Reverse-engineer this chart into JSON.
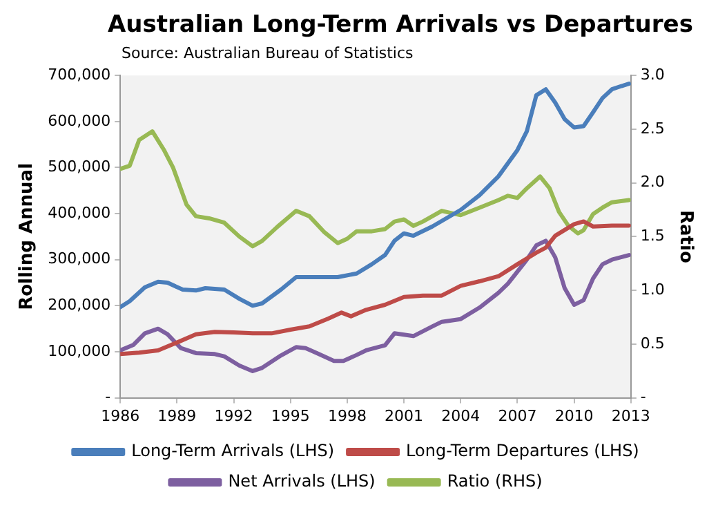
{
  "chart_data": {
    "type": "line",
    "title": "Australian Long-Term Arrivals vs Departures",
    "annotations": [
      "Source: Australian Bureau of Statistics"
    ],
    "ylabel": "Rolling Annual",
    "y2label": "Ratio",
    "xlim": [
      1986,
      2013
    ],
    "xticks": [
      1986,
      1989,
      1992,
      1995,
      1998,
      2001,
      2004,
      2007,
      2010,
      2013
    ],
    "ylim": [
      0,
      700000
    ],
    "yticks": [
      {
        "value": 0,
        "label": "-"
      },
      {
        "value": 100000,
        "label": "100,000"
      },
      {
        "value": 200000,
        "label": "200,000"
      },
      {
        "value": 300000,
        "label": "300,000"
      },
      {
        "value": 400000,
        "label": "400,000"
      },
      {
        "value": 500000,
        "label": "500,000"
      },
      {
        "value": 600000,
        "label": "600,000"
      },
      {
        "value": 700000,
        "label": "700,000"
      }
    ],
    "y2lim": [
      0,
      3
    ],
    "y2ticks": [
      {
        "value": 0,
        "label": "-"
      },
      {
        "value": 0.5,
        "label": "0.5"
      },
      {
        "value": 1,
        "label": "1.0"
      },
      {
        "value": 1.5,
        "label": "1.5"
      },
      {
        "value": 2,
        "label": "2.0"
      },
      {
        "value": 2.5,
        "label": "2.5"
      },
      {
        "value": 3,
        "label": "3.0"
      }
    ],
    "grid": false,
    "legend": "bottom",
    "marker": "none",
    "line_style": "solid",
    "series": [
      {
        "name": "Long-Term Arrivals (LHS)",
        "color": "#4a7ebb",
        "x": [
          1986,
          1986.5,
          1987.3,
          1988,
          1988.5,
          1989.3,
          1990,
          1990.5,
          1991.5,
          1992.3,
          1993,
          1993.5,
          1994.5,
          1995.3,
          1996,
          1997.5,
          1998.5,
          1999.3,
          2000,
          2000.5,
          2001,
          2001.5,
          2002.5,
          2004,
          2005,
          2006,
          2007,
          2007.5,
          2008,
          2008.5,
          2009,
          2009.5,
          2010,
          2010.5,
          2011,
          2011.5,
          2012,
          2012.5,
          2012.9
        ],
        "values": [
          197000,
          210000,
          240000,
          252000,
          250000,
          235000,
          233000,
          238000,
          235000,
          215000,
          200000,
          205000,
          235000,
          262000,
          262000,
          262000,
          270000,
          290000,
          310000,
          341000,
          357000,
          352000,
          372000,
          408000,
          440000,
          481000,
          538000,
          579000,
          657000,
          670000,
          641000,
          605000,
          587000,
          590000,
          620000,
          651000,
          670000,
          677000,
          682000
        ]
      },
      {
        "name": "Long-Term Departures (LHS)",
        "color": "#be4b48",
        "x": [
          1986,
          1987,
          1988,
          1989,
          1990,
          1991,
          1992,
          1993,
          1994,
          1995,
          1996,
          1997,
          1997.7,
          1998.2,
          1999,
          2000,
          2001,
          2002,
          2003,
          2004,
          2005,
          2006,
          2007,
          2008,
          2008.5,
          2009,
          2010,
          2010.5,
          2011,
          2012,
          2012.9
        ],
        "values": [
          95000,
          98000,
          103000,
          120000,
          138000,
          143000,
          142000,
          140000,
          140000,
          148000,
          155000,
          172000,
          185000,
          177000,
          191000,
          202000,
          219000,
          222000,
          222000,
          243000,
          253000,
          264000,
          290000,
          315000,
          326000,
          352000,
          377000,
          383000,
          372000,
          374000,
          374000
        ]
      },
      {
        "name": "Net Arrivals (LHS)",
        "color": "#7d5fa0",
        "x": [
          1986,
          1986.7,
          1987.3,
          1988,
          1988.5,
          1989.2,
          1990,
          1991,
          1991.5,
          1992.3,
          1993,
          1993.5,
          1994.5,
          1995.3,
          1995.8,
          1996.5,
          1997.3,
          1997.8,
          1998.5,
          1999,
          2000,
          2000.5,
          2001.5,
          2002.5,
          2003,
          2004,
          2005,
          2006,
          2006.5,
          2007.5,
          2008,
          2008.5,
          2009,
          2009.5,
          2010,
          2010.5,
          2011,
          2011.5,
          2012,
          2012.9
        ],
        "values": [
          103000,
          115000,
          140000,
          150000,
          138000,
          108000,
          97000,
          95000,
          90000,
          70000,
          58000,
          65000,
          92000,
          110000,
          108000,
          95000,
          80000,
          80000,
          93000,
          103000,
          114000,
          140000,
          134000,
          155000,
          165000,
          171000,
          196000,
          228000,
          248000,
          300000,
          331000,
          341000,
          305000,
          238000,
          202000,
          212000,
          259000,
          290000,
          300000,
          310000
        ]
      },
      {
        "name": "Ratio (RHS)",
        "color": "#98b954",
        "axis": "y2",
        "x": [
          1986,
          1986.5,
          1987,
          1987.7,
          1988.3,
          1988.8,
          1989.5,
          1990,
          1990.7,
          1991.5,
          1992.3,
          1993,
          1993.5,
          1994.3,
          1995.3,
          1996,
          1996.8,
          1997.5,
          1998,
          1998.5,
          1999.3,
          2000,
          2000.5,
          2001,
          2001.5,
          2002,
          2003,
          2004,
          2005,
          2006,
          2006.5,
          2007,
          2007.5,
          2008.2,
          2008.7,
          2009.2,
          2009.7,
          2010.2,
          2010.5,
          2011,
          2011.5,
          2012,
          2012.9
        ],
        "values": [
          2.13,
          2.16,
          2.4,
          2.48,
          2.31,
          2.14,
          1.8,
          1.69,
          1.67,
          1.63,
          1.5,
          1.41,
          1.46,
          1.59,
          1.74,
          1.69,
          1.54,
          1.44,
          1.48,
          1.55,
          1.55,
          1.57,
          1.64,
          1.66,
          1.6,
          1.64,
          1.74,
          1.7,
          1.77,
          1.84,
          1.88,
          1.86,
          1.95,
          2.06,
          1.95,
          1.73,
          1.6,
          1.53,
          1.56,
          1.71,
          1.77,
          1.82,
          1.84
        ]
      }
    ]
  }
}
